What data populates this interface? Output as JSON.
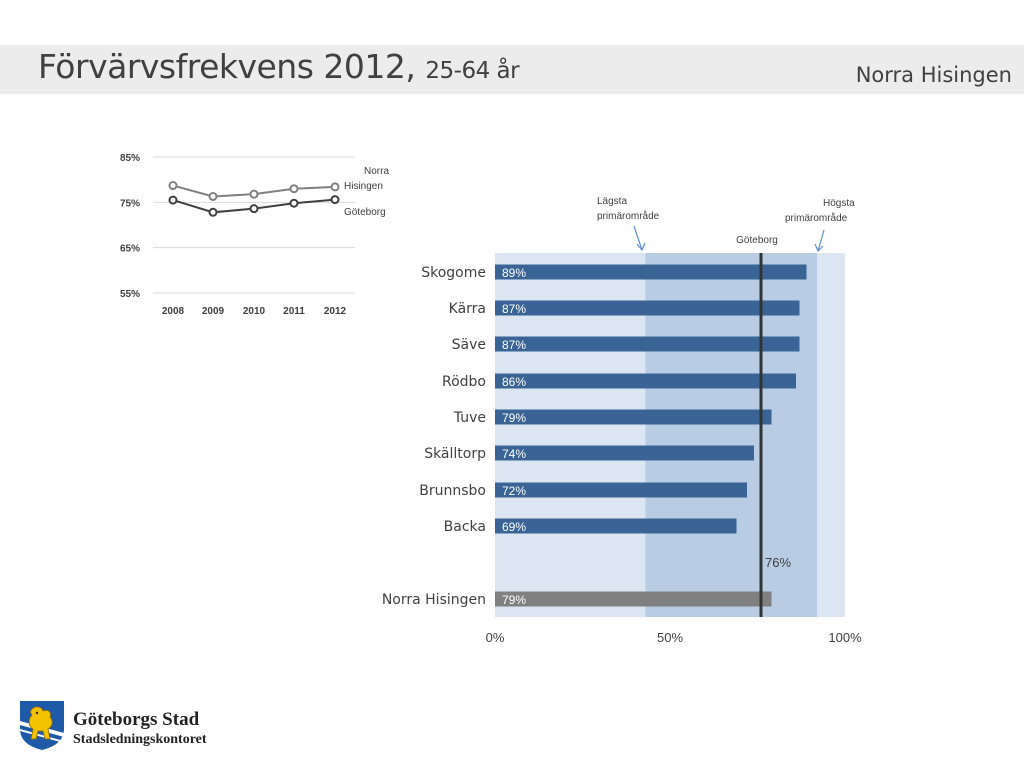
{
  "header": {
    "title_main": "Förvärvsfrekvens 2012,",
    "title_sub": "25-64 år",
    "area": "Norra Hisingen"
  },
  "line_chart": {
    "y_ticks": [
      "85%",
      "75%",
      "65%",
      "55%"
    ],
    "x_ticks": [
      "2008",
      "2009",
      "2010",
      "2011",
      "2012"
    ],
    "series_labels": {
      "norra_line1": "Norra",
      "norra_line2": "Hisingen",
      "goteborg": "Göteborg"
    }
  },
  "bar_chart": {
    "annotations": {
      "lagsta_line1": "Lägsta",
      "lagsta_line2": "primärområde",
      "hogsta_line1": "Högsta",
      "hogsta_line2": "primärområde",
      "goteborg": "Göteborg",
      "goteborg_value": "76%"
    },
    "x_ticks": [
      "0%",
      "50%",
      "100%"
    ]
  },
  "chart_data": [
    {
      "type": "line",
      "x": [
        2008,
        2009,
        2010,
        2011,
        2012
      ],
      "series": [
        {
          "name": "Norra Hisingen",
          "values": [
            78.7,
            76.3,
            76.8,
            78.0,
            78.4
          ]
        },
        {
          "name": "Göteborg",
          "values": [
            75.5,
            72.8,
            73.6,
            74.8,
            75.6
          ]
        }
      ],
      "ylim": [
        55,
        85
      ],
      "yticks": [
        85,
        75,
        65,
        55
      ],
      "grid": "horizontal",
      "colors": {
        "Norra Hisingen": "#808080",
        "Göteborg": "#404040"
      }
    },
    {
      "type": "bar",
      "orientation": "horizontal",
      "categories": [
        "Skogome",
        "Kärra",
        "Säve",
        "Rödbo",
        "Tuve",
        "Skälltorp",
        "Brunnsbo",
        "Backa",
        "Norra Hisingen"
      ],
      "values": [
        89,
        87,
        87,
        86,
        79,
        74,
        72,
        69,
        79
      ],
      "labels": [
        "89%",
        "87%",
        "87%",
        "86%",
        "79%",
        "74%",
        "72%",
        "69%",
        "79%"
      ],
      "xlim": [
        0,
        100
      ],
      "lowest_primary_area": 43,
      "highest_primary_area": 92,
      "goteborg_reference": 76,
      "colors": {
        "bar": "#3a6496",
        "total_bar": "#808080",
        "range_band": "#b8cce4",
        "background_band": "#dce6f2",
        "reference_line": "#333333"
      }
    }
  ],
  "logo": {
    "name": "Göteborgs Stad",
    "sub": "Stadsledningskontoret"
  }
}
